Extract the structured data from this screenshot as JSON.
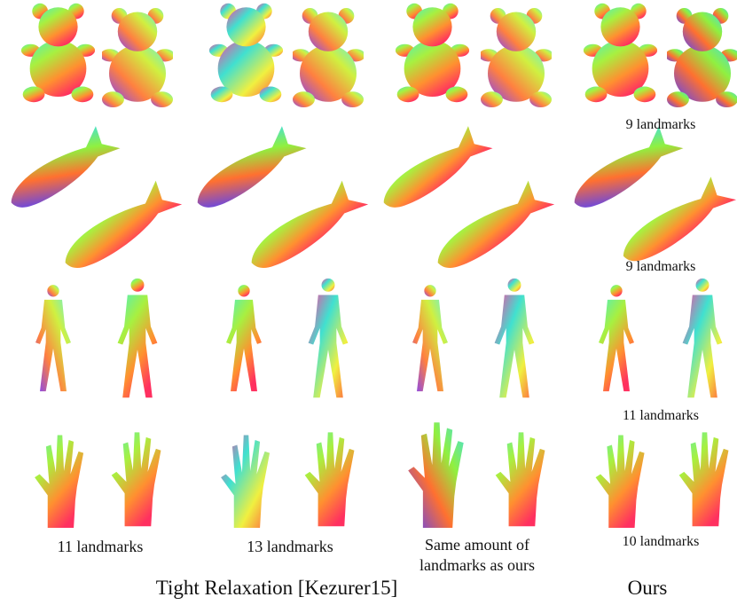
{
  "ours_captions": [
    "9 landmarks",
    "9 landmarks",
    "11 landmarks",
    "10 landmarks"
  ],
  "column_captions": [
    "11 landmarks",
    "13 landmarks",
    [
      "Same amount of",
      "landmarks as ours"
    ]
  ],
  "group_labels": {
    "baseline": "Tight Relaxation [Kezurer15]",
    "ours": "Ours"
  }
}
